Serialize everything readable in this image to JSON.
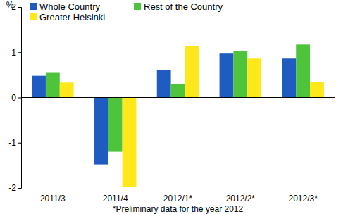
{
  "chart_data": {
    "type": "bar",
    "ylabel": "%",
    "xlabel": "*Preliminary data for the year 2012",
    "categories": [
      "2011/3",
      "2011/4",
      "2012/1*",
      "2012/2*",
      "2012/3*"
    ],
    "series": [
      {
        "name": "Whole Country",
        "color": "#1f5cc1",
        "values": [
          0.48,
          -1.48,
          0.61,
          0.97,
          0.86
        ]
      },
      {
        "name": "Rest of the Country",
        "color": "#4ec43c",
        "values": [
          0.56,
          -1.2,
          0.3,
          1.02,
          1.17
        ]
      },
      {
        "name": "Greater Helsinki",
        "color": "#ffe81a",
        "values": [
          0.33,
          -1.97,
          1.14,
          0.86,
          0.34
        ]
      }
    ],
    "ylim": [
      -2,
      2
    ],
    "yticks": [
      -2,
      -1,
      0,
      1,
      2
    ],
    "grid": false,
    "legend": "top"
  }
}
